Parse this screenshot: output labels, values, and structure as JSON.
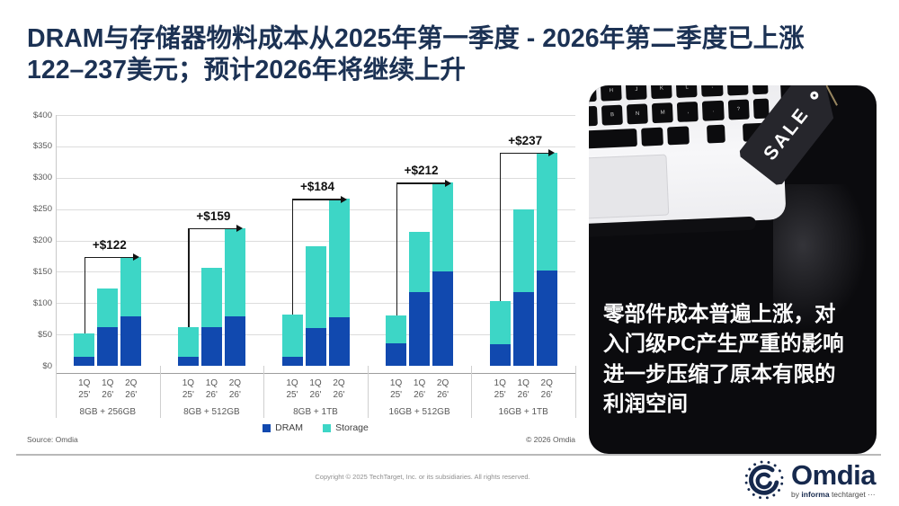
{
  "title": {
    "line1": "DRAM与存储器物料成本从2025年第一季度 - 2026年第二季度已上涨",
    "line2": "122–237美元；预计2026年将继续上升"
  },
  "chart_data": {
    "type": "bar",
    "stacked": true,
    "ylim": [
      0,
      400
    ],
    "grid": true,
    "legend_position": "bottom-center",
    "yticks": [
      [
        0,
        "$0"
      ],
      [
        50,
        "$50"
      ],
      [
        100,
        "$100"
      ],
      [
        150,
        "$150"
      ],
      [
        200,
        "$200"
      ],
      [
        250,
        "$250"
      ],
      [
        300,
        "$300"
      ],
      [
        350,
        "$350"
      ],
      [
        400,
        "$400"
      ]
    ],
    "bar_labels": [
      [
        "1Q",
        "25'"
      ],
      [
        "1Q",
        "26'"
      ],
      [
        "2Q",
        "26'"
      ]
    ],
    "series": [
      {
        "name": "DRAM",
        "color": "#1149AF"
      },
      {
        "name": "Storage",
        "color": "#3DD6C6"
      }
    ],
    "groups": [
      {
        "label": "8GB + 256GB",
        "annotation": "+$122",
        "dram": [
          15,
          62,
          79
        ],
        "storage": [
          37,
          62,
          95
        ],
        "totals": [
          52,
          124,
          174
        ]
      },
      {
        "label": "8GB + 512GB",
        "annotation": "+$159",
        "dram": [
          15,
          62,
          79
        ],
        "storage": [
          46,
          94,
          141
        ],
        "totals": [
          61,
          156,
          220
        ]
      },
      {
        "label": "8GB + 1TB",
        "annotation": "+$184",
        "dram": [
          15,
          60,
          78
        ],
        "storage": [
          67,
          130,
          188
        ],
        "totals": [
          82,
          190,
          266
        ]
      },
      {
        "label": "16GB + 512GB",
        "annotation": "+$212",
        "dram": [
          36,
          118,
          150
        ],
        "storage": [
          44,
          96,
          142
        ],
        "totals": [
          80,
          214,
          292
        ]
      },
      {
        "label": "16GB + 1TB",
        "annotation": "+$237",
        "dram": [
          35,
          118,
          152
        ],
        "storage": [
          68,
          132,
          188
        ],
        "totals": [
          103,
          250,
          340
        ]
      }
    ],
    "source": "Source: Omdia",
    "copyright": "© 2026 Omdia"
  },
  "panel": {
    "sale_tag": "SALE",
    "text_lines": {
      "l1": "零部件成本普遍上涨，对",
      "l2": "入门级PC产生严重的影响",
      "l3": "进一步压缩了原本有限的",
      "l4": "利润空间"
    }
  },
  "footer": {
    "copyright": "Copyright © 2025 TechTarget, Inc. or its subsidiaries. All rights reserved.",
    "logo": {
      "name": "Omdia",
      "by": "by",
      "informa": "informa",
      "techtarget": "techtarget ···"
    }
  },
  "colors": {
    "title": "#1C3254",
    "dram": "#1149AF",
    "storage": "#3DD6C6",
    "annotation": "#111111"
  }
}
